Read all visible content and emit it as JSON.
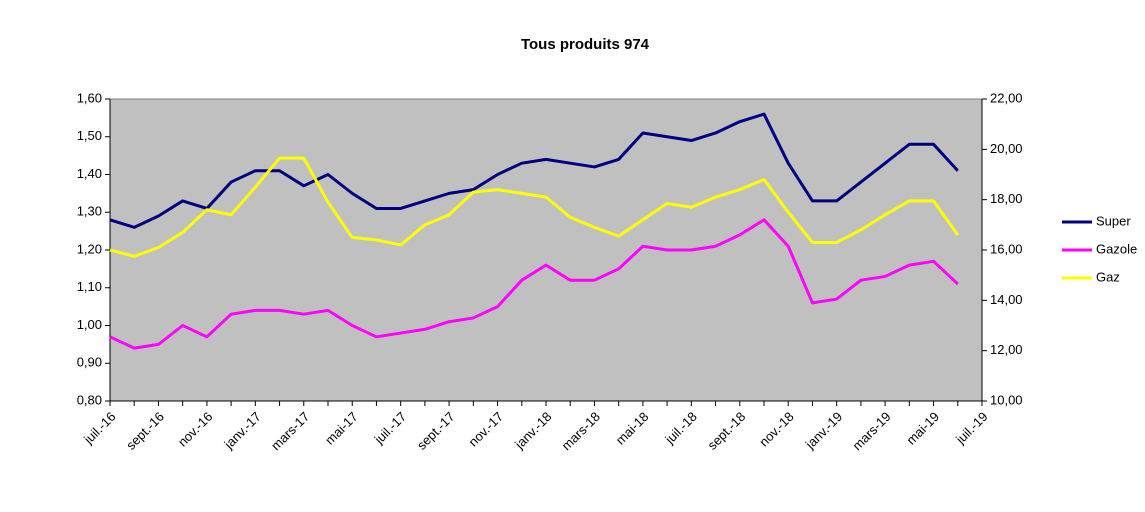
{
  "chart_data": {
    "type": "line",
    "title": "Tous produits 974",
    "categories": [
      "juil.-16",
      null,
      "sept.-16",
      null,
      "nov.-16",
      null,
      "janv.-17",
      null,
      "mars-17",
      null,
      "mai-17",
      null,
      "juil.-17",
      null,
      "sept.-17",
      null,
      "nov.-17",
      null,
      "janv.-18",
      null,
      "mars-18",
      null,
      "mai-18",
      null,
      "juil.-18",
      null,
      "sept.-18",
      null,
      "nov.-18",
      null,
      "janv.-19",
      null,
      "mars-19",
      null,
      "mai-19",
      null,
      "juil.-19"
    ],
    "series": [
      {
        "name": "Super",
        "color": "#000080",
        "values": [
          1.28,
          1.26,
          1.29,
          1.33,
          1.31,
          1.38,
          1.41,
          1.41,
          1.37,
          1.4,
          1.35,
          1.31,
          1.31,
          1.33,
          1.35,
          1.36,
          1.4,
          1.43,
          1.44,
          1.43,
          1.42,
          1.44,
          1.51,
          1.5,
          1.49,
          1.51,
          1.54,
          1.56,
          1.43,
          1.33,
          1.33,
          1.38,
          1.43,
          1.48,
          1.48,
          1.41,
          null
        ]
      },
      {
        "name": "Gazole",
        "color": "#ff00ff",
        "values": [
          0.97,
          0.94,
          0.95,
          1.0,
          0.97,
          1.03,
          1.04,
          1.04,
          1.03,
          1.04,
          1.0,
          0.97,
          0.98,
          0.99,
          1.01,
          1.02,
          1.05,
          1.12,
          1.16,
          1.12,
          1.12,
          1.15,
          1.21,
          1.2,
          1.2,
          1.21,
          1.24,
          1.28,
          1.21,
          1.06,
          1.07,
          1.12,
          1.13,
          1.16,
          1.17,
          1.11,
          null
        ]
      },
      {
        "name": "Gaz",
        "color": "#ffff00",
        "axis": "y2",
        "values": [
          16.0,
          15.75,
          16.1,
          16.7,
          17.6,
          17.4,
          18.5,
          19.65,
          19.65,
          17.9,
          16.5,
          16.4,
          16.2,
          17.0,
          17.4,
          18.3,
          18.4,
          18.25,
          18.1,
          17.3,
          16.9,
          16.55,
          17.2,
          17.85,
          17.7,
          18.1,
          18.4,
          18.8,
          17.5,
          16.3,
          16.3,
          16.8,
          17.4,
          17.95,
          17.95,
          16.6,
          null
        ]
      }
    ],
    "ylim": [
      0.8,
      1.6
    ],
    "yticks": [
      {
        "value": 0.8,
        "label": "0,80"
      },
      {
        "value": 0.9,
        "label": "0,90"
      },
      {
        "value": 1.0,
        "label": "1,00"
      },
      {
        "value": 1.1,
        "label": "1,10"
      },
      {
        "value": 1.2,
        "label": "1,20"
      },
      {
        "value": 1.3,
        "label": "1,30"
      },
      {
        "value": 1.4,
        "label": "1,40"
      },
      {
        "value": 1.5,
        "label": "1,50"
      },
      {
        "value": 1.6,
        "label": "1,60"
      }
    ],
    "y2lim": [
      10,
      22
    ],
    "y2ticks": [
      {
        "value": 10,
        "label": "10,00"
      },
      {
        "value": 12,
        "label": "12,00"
      },
      {
        "value": 14,
        "label": "14,00"
      },
      {
        "value": 16,
        "label": "16,00"
      },
      {
        "value": 18,
        "label": "18,00"
      },
      {
        "value": 20,
        "label": "20,00"
      },
      {
        "value": 22,
        "label": "22,00"
      }
    ],
    "plot_background": "#c0c0c0",
    "legend": "right"
  }
}
